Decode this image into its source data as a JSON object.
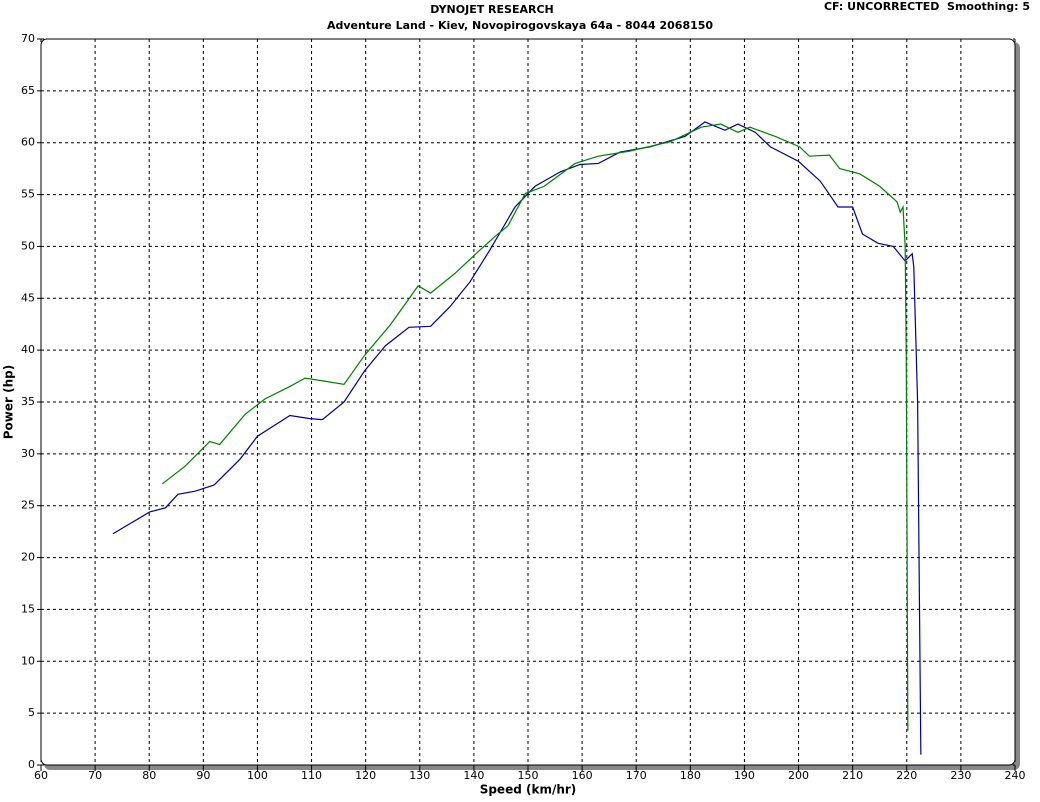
{
  "chart_data": {
    "type": "line",
    "title": "DYNOJET RESEARCH",
    "subtitle": "Adventure Land - Kiev, Novopirogovskaya 64a - 8044 2068150",
    "annotation": "CF: UNCORRECTED  Smoothing: 5",
    "x_label": "Speed (km/hr)",
    "y_label": "Power (hp)",
    "xlim": [
      60,
      240
    ],
    "xticks": [
      60,
      70,
      80,
      90,
      100,
      110,
      120,
      130,
      140,
      150,
      160,
      170,
      180,
      190,
      200,
      210,
      220,
      230,
      240
    ],
    "ylim": [
      0,
      70
    ],
    "yticks": [
      0,
      5,
      10,
      15,
      20,
      25,
      30,
      35,
      40,
      45,
      50,
      55,
      60,
      65,
      70
    ],
    "grid": true,
    "series": [
      {
        "color": "#00008b",
        "x": [
          73.3,
          80.1,
          83,
          85.3,
          88.5,
          92,
          96.8,
          100,
          103,
          106,
          109.7,
          112,
          116,
          119.8,
          123.6,
          128,
          132,
          135.6,
          139.3,
          143,
          147.6,
          151.3,
          156,
          159.6,
          163,
          167,
          172.5,
          179,
          182.7,
          186.4,
          188.8,
          192,
          194.8,
          200,
          204,
          207.3,
          210,
          211.8,
          214.7,
          217.5,
          219.7,
          221,
          221.3,
          222,
          222.6
        ],
        "values": [
          22.3,
          24.4,
          24.8,
          26.1,
          26.4,
          27,
          29.5,
          31.7,
          32.7,
          33.7,
          33.4,
          33.3,
          35,
          38,
          40.4,
          42.2,
          42.3,
          44.2,
          46.6,
          49.7,
          53.8,
          55.8,
          57.2,
          57.9,
          58,
          59.1,
          59.6,
          60.6,
          62,
          61.2,
          61.8,
          61,
          59.6,
          58.2,
          56.3,
          53.8,
          53.8,
          51.2,
          50.3,
          50,
          48.6,
          49.3,
          48,
          35,
          1
        ]
      },
      {
        "color": "#008000",
        "x": [
          82.4,
          86.6,
          91.2,
          93,
          97.7,
          101.4,
          106,
          108.8,
          112.5,
          116,
          119.8,
          124.5,
          129.7,
          132,
          136.5,
          140.8,
          144,
          146.3,
          149.5,
          153,
          158.7,
          163,
          168.9,
          176.3,
          182,
          185.6,
          188.8,
          191,
          195.7,
          200.2,
          202,
          205.7,
          207.6,
          211.3,
          215,
          218.2,
          218.8,
          219.3,
          219.7,
          219.9,
          220.2
        ],
        "values": [
          27.1,
          28.8,
          31.2,
          30.9,
          33.8,
          35.3,
          36.5,
          37.3,
          37,
          36.7,
          39.5,
          42.4,
          46.2,
          45.5,
          47.4,
          49.5,
          51,
          52,
          55.1,
          55.8,
          58,
          58.7,
          59.2,
          60.1,
          61.5,
          61.8,
          61,
          61.5,
          60.6,
          59.6,
          58.7,
          58.8,
          57.5,
          57,
          55.8,
          54.3,
          53.3,
          53.8,
          50,
          39.9,
          3.3
        ]
      }
    ]
  }
}
